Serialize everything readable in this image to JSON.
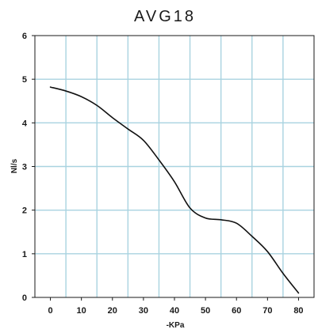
{
  "chart_data": {
    "type": "line",
    "title": "AVG18",
    "xlabel": "-KPa",
    "ylabel": "Nl/s",
    "xlim": [
      -5,
      85
    ],
    "ylim": [
      0,
      6
    ],
    "x_ticks": [
      0,
      10,
      20,
      30,
      40,
      50,
      60,
      70,
      80
    ],
    "y_ticks": [
      0,
      1,
      2,
      3,
      4,
      5,
      6
    ],
    "grid": true,
    "legend": "none",
    "series": [
      {
        "x": [
          0,
          5,
          10,
          15,
          20,
          25,
          30,
          35,
          40,
          45,
          50,
          55,
          60,
          65,
          70,
          75,
          80
        ],
        "values": [
          4.82,
          4.73,
          4.6,
          4.4,
          4.12,
          3.86,
          3.6,
          3.15,
          2.65,
          2.05,
          1.82,
          1.78,
          1.7,
          1.4,
          1.05,
          0.55,
          0.1
        ]
      }
    ],
    "colors": {
      "line": "#111111",
      "grid": "#a9d3e0",
      "frame": "#1a1a1a"
    }
  }
}
